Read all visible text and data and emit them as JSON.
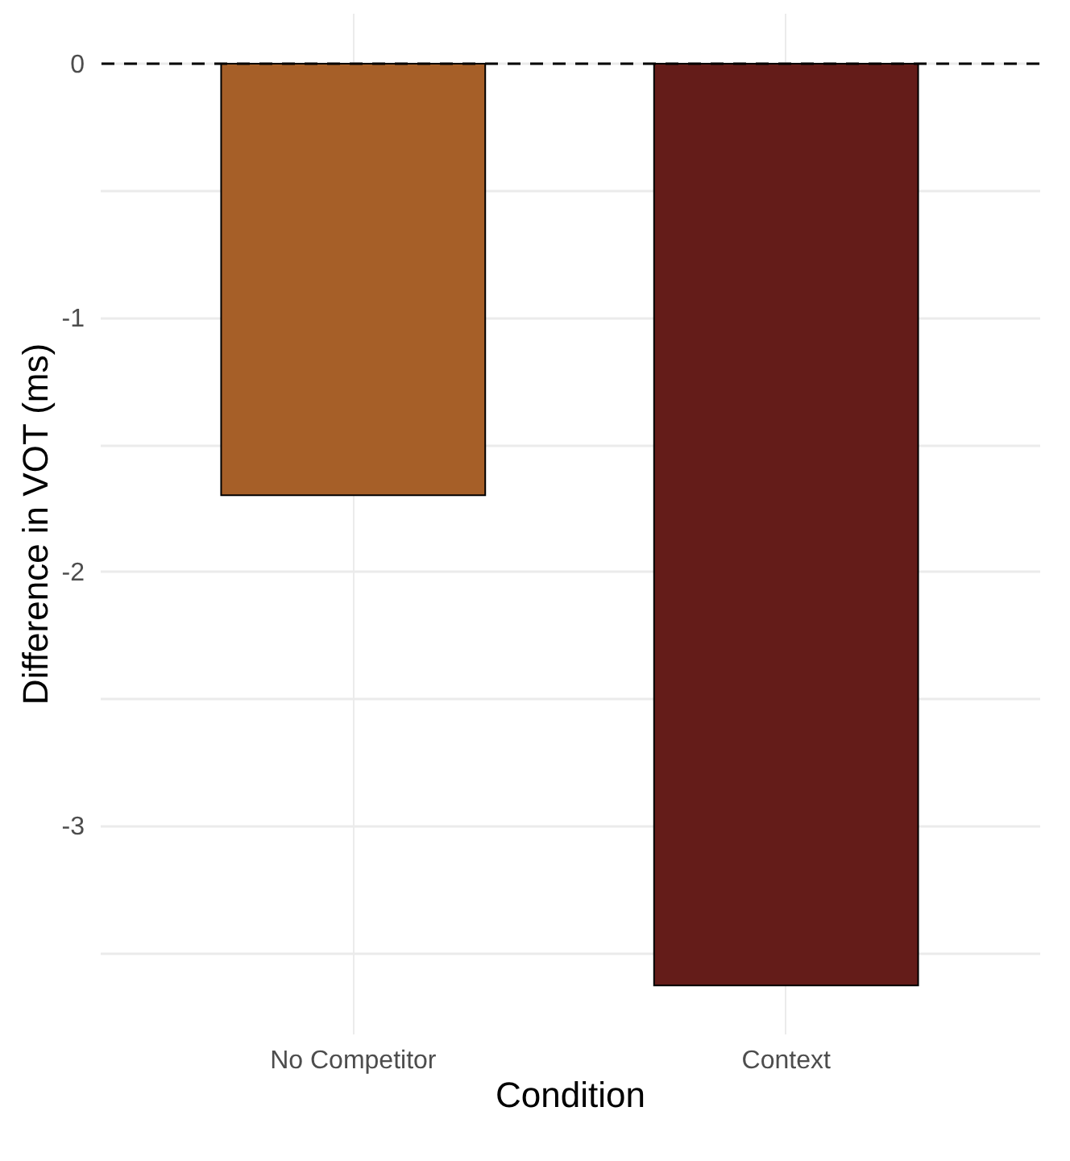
{
  "chart_data": {
    "type": "bar",
    "xlabel": "Condition",
    "ylabel": "Difference in VOT (ms)",
    "categories": [
      "No Competitor",
      "Context"
    ],
    "values": [
      -1.7,
      -3.63
    ],
    "colors": [
      "#a65f28",
      "#641c19"
    ],
    "ylim": [
      -3.82,
      0.2
    ],
    "yticks": [
      {
        "value": -3.5,
        "label": null
      },
      -3,
      {
        "value": -2.5,
        "label": null
      },
      -2,
      {
        "value": -1.5,
        "label": null
      },
      -1,
      {
        "value": -0.5,
        "label": null
      },
      0
    ],
    "grid": true,
    "ref_lines": [
      {
        "axis": "y",
        "value": 0,
        "line_style": "dashed"
      }
    ]
  }
}
